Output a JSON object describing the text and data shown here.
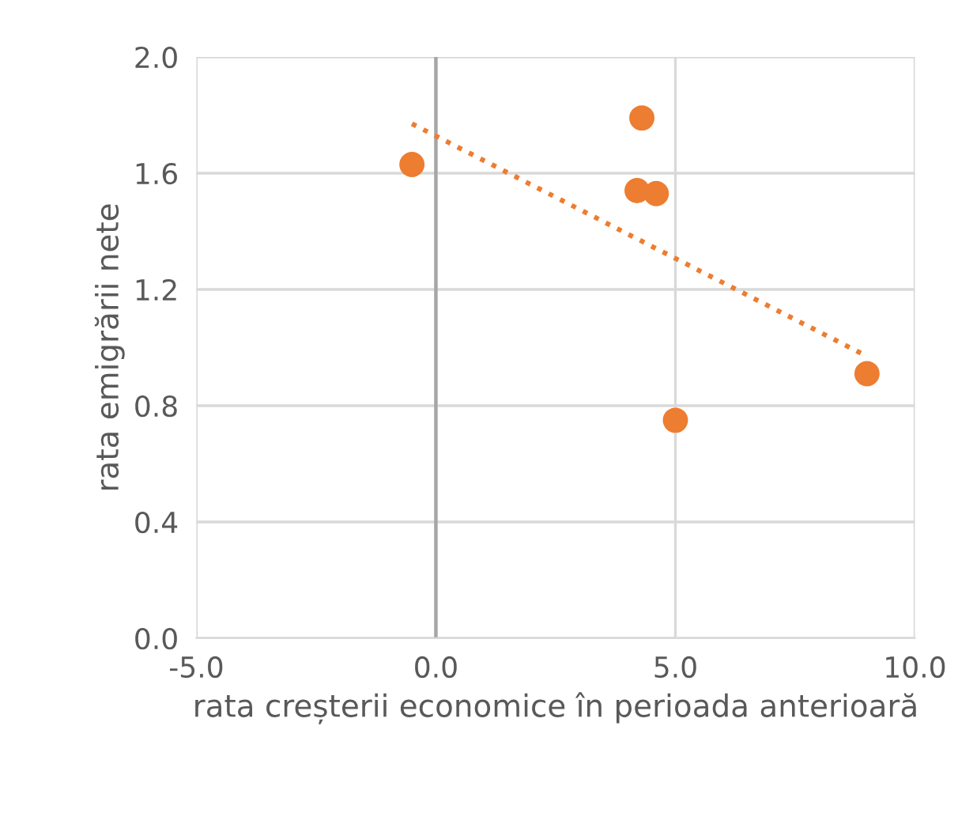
{
  "chart_data": {
    "type": "scatter",
    "xlabel": "rata creșterii economice în perioada anterioară",
    "ylabel": "rata emigrării nete",
    "series": [
      {
        "color": "#ed7d31",
        "x": [
          -0.5,
          4.3,
          4.2,
          4.6,
          5.0,
          9.0
        ],
        "values": [
          1.63,
          1.79,
          1.54,
          1.53,
          0.75,
          0.91
        ],
        "marker": "circle"
      },
      {
        "type": "line",
        "color": "#ed7d31",
        "x": [
          -0.5,
          9.0
        ],
        "values": [
          1.77,
          0.97
        ],
        "line_style": "dotted",
        "marker": "none"
      }
    ],
    "xlim": [
      -5,
      10
    ],
    "xticks": [
      {
        "value": -5,
        "label": "-5.0"
      },
      {
        "value": 0,
        "label": "0.0"
      },
      {
        "value": 5,
        "label": "5.0"
      },
      {
        "value": 10,
        "label": "10.0"
      }
    ],
    "ylim": [
      0,
      2
    ],
    "yticks": [
      {
        "value": 0,
        "label": "0.0"
      },
      {
        "value": 0.4,
        "label": "0.4"
      },
      {
        "value": 0.8,
        "label": "0.8"
      },
      {
        "value": 1.2,
        "label": "1.2"
      },
      {
        "value": 1.6,
        "label": "1.6"
      },
      {
        "value": 2,
        "label": "2.0"
      }
    ],
    "ref_lines": [
      {
        "axis": "x",
        "value": 0,
        "color": "#a6a6a6"
      }
    ],
    "grid": true,
    "legend": false
  }
}
